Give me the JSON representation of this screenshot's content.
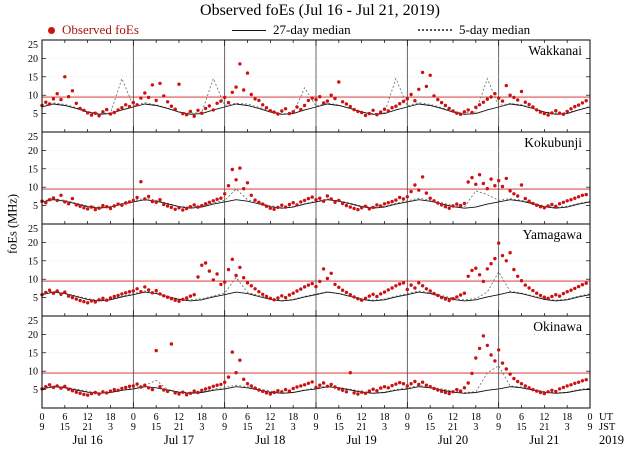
{
  "title": "Observed foEs (Jul 16 - Jul 21, 2019)",
  "legend": [
    {
      "label": "Observed foEs",
      "marker": "dot",
      "color": "#cc1111"
    },
    {
      "label": "27-day median",
      "marker": "solid-line",
      "color": "#111111"
    },
    {
      "label": "5-day median",
      "marker": "dotted-line",
      "color": "#555555"
    }
  ],
  "axis": {
    "ylabel": "foEs (MHz)",
    "ut_label": "UT",
    "jst_label": "JST",
    "year": "2019"
  },
  "chart_data": {
    "type": "scatter",
    "title": "Observed foEs (Jul 16 - Jul 21, 2019)",
    "ylabel": "foEs (MHz)",
    "x_range_hours": [
      0,
      144
    ],
    "x_tick_hours": 6,
    "x_day_hours": 24,
    "y_range": [
      0,
      25
    ],
    "y_ticks": [
      5,
      10,
      15,
      20,
      25
    ],
    "grid_y": [
      5,
      10,
      15,
      20
    ],
    "days": [
      "Jul 16",
      "Jul 17",
      "Jul 18",
      "Jul 19",
      "Jul 20",
      "Jul 21"
    ],
    "ut_cycle": [
      "0",
      "6",
      "12",
      "18"
    ],
    "jst_cycle": [
      "9",
      "15",
      "21",
      "3"
    ],
    "threshold_mhz": 9.5,
    "observed_step_hours": 1,
    "median_step_hours": 3,
    "colors": {
      "observed": "#cc1111",
      "median27": "#111111",
      "median5": "#666666",
      "threshold": "#cc2222",
      "frame": "#000000",
      "daysep": "#444444"
    },
    "panels": [
      {
        "station": "Wakkanai",
        "observed": [
          7.2,
          8.1,
          7.6,
          9.0,
          10.4,
          8.8,
          15.0,
          9.6,
          11.2,
          7.8,
          6.4,
          5.9,
          5.2,
          4.6,
          5.1,
          4.4,
          5.5,
          6.1,
          4.9,
          5.3,
          6.0,
          6.6,
          7.4,
          6.9,
          8.0,
          7.4,
          9.2,
          10.6,
          9.4,
          12.8,
          8.6,
          13.2,
          9.8,
          8.2,
          7.0,
          6.2,
          13.0,
          5.0,
          4.7,
          5.6,
          4.3,
          5.9,
          5.1,
          6.4,
          7.1,
          6.0,
          7.8,
          8.4,
          9.4,
          8.0,
          10.8,
          12.2,
          18.5,
          11.4,
          16.0,
          10.2,
          9.0,
          8.6,
          7.4,
          6.6,
          5.8,
          5.4,
          4.9,
          5.7,
          6.3,
          5.0,
          5.5,
          6.8,
          6.1,
          7.2,
          8.6,
          9.2,
          8.8,
          9.6,
          7.9,
          8.4,
          10.0,
          9.1,
          13.6,
          8.2,
          7.6,
          6.9,
          6.1,
          5.6,
          5.3,
          4.5,
          5.0,
          5.9,
          4.7,
          5.4,
          6.2,
          5.7,
          6.6,
          7.0,
          7.7,
          8.3,
          9.0,
          10.2,
          8.5,
          11.6,
          16.2,
          12.4,
          15.4,
          9.8,
          8.8,
          8.0,
          7.2,
          6.4,
          5.7,
          5.1,
          4.8,
          5.5,
          6.0,
          5.3,
          6.7,
          7.4,
          8.1,
          8.9,
          9.5,
          10.4,
          9.2,
          8.4,
          12.6,
          10.0,
          9.4,
          8.7,
          11.0,
          8.1,
          7.5,
          6.8,
          6.0,
          5.4,
          5.0,
          4.6,
          5.2,
          5.8,
          5.1,
          4.8,
          5.6,
          6.3,
          6.9,
          7.3,
          7.9,
          8.5
        ],
        "median27": [
          6.8,
          7.6,
          7.2,
          6.4,
          5.4,
          4.8,
          5.0,
          6.0,
          6.8,
          7.6,
          7.2,
          6.4,
          5.4,
          4.8,
          5.0,
          6.0,
          6.8,
          7.6,
          7.2,
          6.4,
          5.4,
          4.8,
          5.0,
          6.0,
          6.8,
          7.6,
          7.2,
          6.4,
          5.4,
          4.8,
          5.0,
          6.0,
          6.8,
          7.6,
          7.2,
          6.4,
          5.4,
          4.8,
          5.0,
          6.0,
          6.8,
          7.6,
          7.2,
          6.4,
          5.4,
          4.8,
          5.0,
          6.0,
          6.8
        ],
        "median5": [
          7.0,
          7.9,
          7.5,
          6.6,
          5.6,
          5.0,
          5.2,
          14.5,
          7.1,
          8.0,
          7.4,
          6.5,
          5.5,
          5.1,
          5.3,
          14.5,
          7.2,
          7.8,
          7.6,
          6.7,
          5.7,
          4.9,
          5.1,
          12.0,
          7.0,
          7.9,
          7.3,
          6.4,
          5.4,
          5.0,
          5.2,
          14.5,
          7.1,
          8.0,
          7.5,
          6.6,
          5.6,
          5.2,
          5.4,
          14.5,
          7.2,
          7.8,
          7.4,
          6.5,
          5.5,
          5.1,
          5.3,
          6.0,
          7.0
        ]
      },
      {
        "station": "Kokubunji",
        "observed": [
          6.2,
          5.8,
          6.6,
          7.1,
          6.4,
          7.8,
          6.0,
          5.5,
          6.9,
          5.2,
          4.8,
          4.4,
          4.1,
          4.6,
          3.9,
          4.3,
          5.0,
          4.7,
          4.2,
          4.9,
          5.4,
          5.1,
          5.7,
          6.0,
          6.4,
          7.2,
          11.5,
          6.8,
          7.5,
          6.1,
          5.9,
          6.6,
          5.3,
          4.9,
          4.5,
          4.0,
          4.4,
          3.8,
          4.2,
          4.7,
          5.2,
          4.6,
          5.0,
          5.5,
          5.9,
          6.3,
          6.7,
          7.0,
          8.2,
          10.4,
          14.8,
          12.0,
          15.2,
          9.6,
          11.2,
          7.8,
          6.5,
          5.9,
          5.4,
          4.8,
          4.3,
          4.0,
          4.5,
          5.1,
          4.6,
          5.3,
          5.8,
          5.2,
          6.0,
          6.4,
          6.9,
          7.3,
          6.6,
          7.0,
          6.2,
          7.6,
          6.8,
          5.9,
          6.4,
          5.6,
          5.0,
          4.6,
          4.2,
          3.9,
          4.4,
          4.8,
          4.1,
          4.5,
          5.2,
          4.9,
          5.5,
          5.8,
          6.1,
          6.5,
          7.2,
          6.8,
          7.4,
          8.8,
          10.6,
          9.2,
          12.8,
          8.4,
          7.0,
          6.3,
          5.7,
          5.2,
          4.7,
          4.3,
          4.9,
          5.4,
          5.0,
          5.6,
          11.4,
          12.6,
          10.8,
          13.4,
          11.0,
          9.6,
          12.2,
          10.4,
          11.8,
          10.2,
          12.4,
          9.0,
          8.2,
          7.6,
          10.6,
          6.9,
          6.2,
          5.6,
          5.1,
          4.7,
          4.4,
          4.9,
          5.3,
          4.8,
          5.5,
          5.9,
          6.3,
          6.6,
          7.0,
          7.4,
          7.8,
          8.0
        ],
        "median27": [
          6.0,
          6.6,
          6.2,
          5.5,
          4.7,
          4.3,
          4.6,
          5.4,
          6.0,
          6.6,
          6.2,
          5.5,
          4.7,
          4.3,
          4.6,
          5.4,
          6.0,
          6.6,
          6.2,
          5.5,
          4.7,
          4.3,
          4.6,
          5.4,
          6.0,
          6.6,
          6.2,
          5.5,
          4.7,
          4.3,
          4.6,
          5.4,
          6.0,
          6.6,
          6.2,
          5.5,
          4.7,
          4.3,
          4.6,
          5.4,
          6.0,
          6.6,
          6.2,
          5.5,
          4.7,
          4.3,
          4.6,
          5.4,
          6.0
        ],
        "median5": [
          6.2,
          6.9,
          6.4,
          5.7,
          4.9,
          4.5,
          4.8,
          5.6,
          6.3,
          7.0,
          6.5,
          5.6,
          4.8,
          4.6,
          4.9,
          5.7,
          6.4,
          9.5,
          6.6,
          5.8,
          5.0,
          4.4,
          4.7,
          5.5,
          6.2,
          6.8,
          6.3,
          5.7,
          4.9,
          4.5,
          4.8,
          5.6,
          6.3,
          7.0,
          6.5,
          5.8,
          5.0,
          4.6,
          9.0,
          8.0,
          6.4,
          6.9,
          6.4,
          5.7,
          4.9,
          4.5,
          4.8,
          5.6,
          6.2
        ]
      },
      {
        "station": "Yamagawa",
        "observed": [
          5.8,
          6.4,
          7.0,
          6.2,
          6.8,
          5.9,
          6.5,
          5.4,
          5.0,
          4.6,
          4.2,
          3.9,
          3.6,
          4.1,
          3.8,
          4.4,
          4.8,
          4.3,
          4.9,
          5.3,
          5.6,
          6.0,
          6.3,
          6.6,
          6.8,
          7.4,
          6.6,
          7.9,
          7.1,
          6.3,
          6.9,
          6.0,
          5.5,
          5.1,
          4.7,
          4.3,
          4.0,
          4.5,
          4.9,
          5.4,
          5.8,
          10.6,
          13.8,
          14.4,
          12.2,
          9.8,
          11.4,
          8.6,
          9.2,
          12.6,
          15.4,
          11.0,
          13.2,
          10.4,
          9.0,
          8.2,
          7.4,
          6.6,
          5.9,
          5.3,
          4.8,
          4.4,
          4.9,
          5.5,
          5.0,
          5.7,
          6.2,
          6.8,
          7.3,
          7.9,
          8.4,
          8.8,
          8.0,
          9.4,
          12.8,
          10.2,
          11.6,
          8.6,
          7.8,
          7.0,
          6.4,
          5.8,
          5.2,
          4.7,
          4.3,
          4.8,
          5.4,
          5.9,
          5.3,
          6.0,
          6.5,
          7.1,
          7.6,
          8.2,
          8.7,
          9.0,
          7.2,
          8.4,
          7.6,
          9.0,
          8.2,
          7.4,
          6.8,
          6.1,
          5.6,
          5.0,
          4.6,
          4.2,
          4.7,
          5.2,
          5.7,
          6.2,
          10.8,
          12.4,
          13.0,
          11.2,
          9.4,
          12.8,
          14.2,
          15.6,
          19.8,
          16.4,
          15.0,
          17.2,
          12.6,
          10.8,
          9.6,
          8.4,
          7.6,
          6.9,
          6.2,
          5.6,
          5.1,
          4.8,
          5.3,
          5.8,
          5.4,
          6.1,
          6.6,
          7.0,
          7.5,
          8.0,
          8.5,
          8.9
        ],
        "median27": [
          5.8,
          6.5,
          6.1,
          5.3,
          4.5,
          4.1,
          4.4,
          5.2,
          5.8,
          6.5,
          6.1,
          5.3,
          4.5,
          4.1,
          4.4,
          5.2,
          5.8,
          6.5,
          6.1,
          5.3,
          4.5,
          4.1,
          4.4,
          5.2,
          5.8,
          6.5,
          6.1,
          5.3,
          4.5,
          4.1,
          4.4,
          5.2,
          5.8,
          6.5,
          6.1,
          5.3,
          4.5,
          4.1,
          4.4,
          5.2,
          5.8,
          6.5,
          6.1,
          5.3,
          4.5,
          4.1,
          4.4,
          5.2,
          5.8
        ],
        "median5": [
          6.0,
          6.7,
          6.2,
          5.5,
          4.7,
          4.3,
          4.6,
          5.4,
          6.1,
          6.8,
          6.3,
          5.4,
          4.6,
          4.4,
          4.7,
          5.5,
          6.2,
          10.5,
          6.4,
          5.6,
          4.8,
          4.2,
          4.5,
          5.3,
          6.0,
          6.6,
          6.1,
          5.5,
          4.7,
          4.3,
          4.6,
          5.4,
          6.1,
          6.8,
          6.3,
          5.6,
          4.8,
          4.4,
          4.7,
          6.5,
          12.0,
          6.7,
          6.2,
          5.5,
          4.7,
          4.3,
          4.6,
          5.4,
          6.0
        ]
      },
      {
        "station": "Okinawa",
        "observed": [
          5.2,
          5.8,
          6.3,
          5.6,
          6.0,
          5.4,
          5.9,
          5.1,
          4.7,
          4.3,
          4.0,
          3.7,
          3.5,
          3.9,
          4.2,
          3.8,
          4.4,
          4.1,
          4.6,
          5.0,
          4.8,
          5.3,
          5.6,
          5.9,
          6.0,
          6.5,
          5.7,
          6.2,
          5.5,
          5.0,
          15.6,
          5.8,
          4.9,
          4.5,
          17.4,
          4.1,
          3.8,
          4.3,
          3.6,
          4.0,
          4.6,
          4.2,
          4.8,
          5.2,
          5.5,
          5.9,
          6.2,
          6.4,
          7.0,
          8.4,
          15.2,
          9.6,
          13.0,
          7.8,
          6.6,
          6.0,
          5.4,
          4.9,
          4.5,
          4.1,
          3.8,
          4.2,
          4.7,
          4.4,
          5.0,
          4.6,
          5.3,
          5.7,
          6.0,
          6.3,
          6.7,
          7.1,
          5.6,
          6.2,
          6.8,
          5.9,
          6.4,
          5.7,
          5.2,
          4.8,
          4.4,
          9.6,
          4.1,
          3.8,
          4.3,
          4.0,
          4.6,
          5.1,
          4.7,
          5.4,
          5.8,
          5.5,
          6.1,
          6.5,
          6.9,
          6.6,
          6.0,
          6.6,
          7.2,
          6.4,
          7.0,
          6.2,
          5.8,
          5.3,
          4.9,
          4.5,
          4.2,
          3.9,
          4.4,
          5.0,
          4.6,
          5.5,
          6.8,
          9.4,
          13.6,
          16.2,
          19.6,
          17.0,
          14.4,
          12.8,
          15.8,
          12.2,
          10.6,
          9.2,
          8.0,
          7.2,
          6.6,
          6.0,
          5.5,
          5.0,
          4.6,
          4.2,
          3.9,
          4.4,
          4.8,
          4.5,
          5.2,
          5.6,
          6.0,
          6.3,
          6.7,
          7.0,
          7.4,
          7.7
        ],
        "median27": [
          5.2,
          5.8,
          5.5,
          4.9,
          4.3,
          4.0,
          4.2,
          4.8,
          5.2,
          5.8,
          5.5,
          4.9,
          4.3,
          4.0,
          4.2,
          4.8,
          5.2,
          5.8,
          5.5,
          4.9,
          4.3,
          4.0,
          4.2,
          4.8,
          5.2,
          5.8,
          5.5,
          4.9,
          4.3,
          4.0,
          4.2,
          4.8,
          5.2,
          5.8,
          5.5,
          4.9,
          4.3,
          4.0,
          4.2,
          4.8,
          5.2,
          5.8,
          5.5,
          4.9,
          4.3,
          4.0,
          4.2,
          4.8,
          5.2
        ],
        "median5": [
          5.4,
          6.0,
          5.7,
          5.1,
          4.5,
          4.1,
          4.3,
          5.0,
          5.5,
          6.1,
          7.5,
          5.0,
          4.4,
          4.2,
          4.4,
          5.1,
          5.6,
          6.2,
          5.8,
          5.2,
          4.6,
          4.0,
          4.2,
          4.9,
          5.4,
          6.0,
          5.6,
          5.1,
          4.5,
          4.1,
          4.3,
          5.0,
          5.5,
          6.1,
          5.7,
          5.2,
          4.6,
          4.2,
          4.4,
          9.5,
          11.5,
          6.0,
          5.7,
          5.1,
          4.5,
          4.1,
          4.3,
          5.0,
          5.4
        ]
      }
    ]
  }
}
